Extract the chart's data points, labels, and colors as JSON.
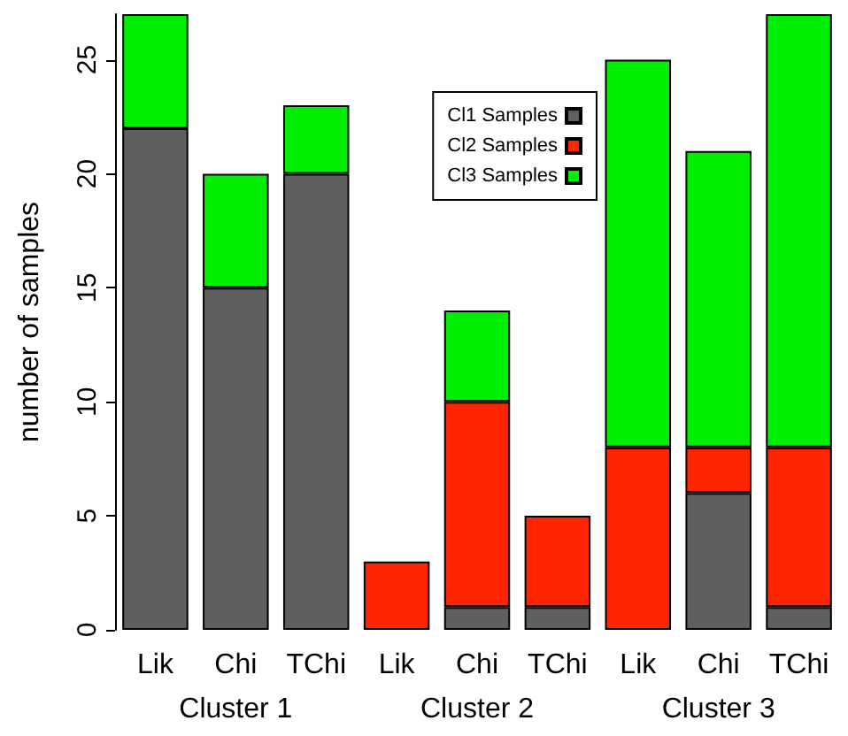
{
  "chart_data": {
    "type": "bar",
    "stacked": true,
    "ylabel": "number of samples",
    "categories": [
      "Lik",
      "Chi",
      "TChi",
      "Lik",
      "Chi",
      "TChi",
      "Lik",
      "Chi",
      "TChi"
    ],
    "series": [
      {
        "name": "Cl1 Samples",
        "color": "#5f5f5f",
        "values": [
          22,
          15,
          20,
          0,
          1,
          1,
          0,
          6,
          1
        ]
      },
      {
        "name": "Cl2 Samples",
        "color": "#ff2500",
        "values": [
          0,
          0,
          0,
          3,
          9,
          4,
          8,
          2,
          7
        ]
      },
      {
        "name": "Cl3 Samples",
        "color": "#00ef00",
        "values": [
          5,
          5,
          3,
          0,
          4,
          0,
          17,
          13,
          19
        ]
      }
    ],
    "ylim": [
      0,
      27
    ],
    "yticks": [
      0,
      5,
      10,
      15,
      20,
      25
    ],
    "grid": false,
    "legend": "top right",
    "annotations": [
      "Cluster 1",
      "Cluster 2",
      "Cluster 3"
    ]
  }
}
